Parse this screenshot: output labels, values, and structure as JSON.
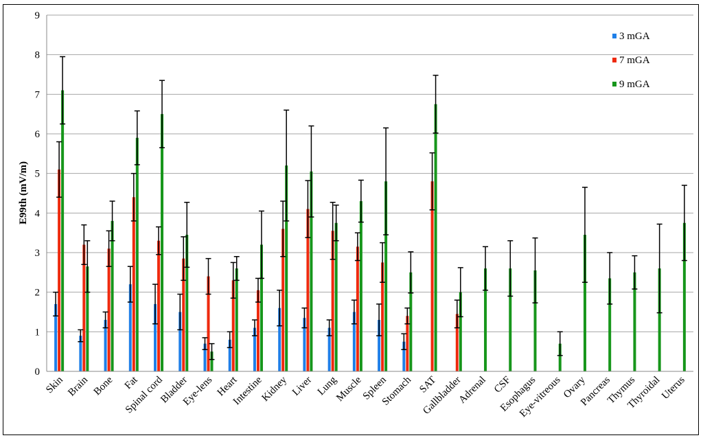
{
  "chart_data": {
    "type": "bar",
    "title": "",
    "xlabel": "",
    "ylabel": "E99th (mV/m)",
    "ylim": [
      0,
      9
    ],
    "yticks": [
      0,
      1,
      2,
      3,
      4,
      5,
      6,
      7,
      8,
      9
    ],
    "grid": true,
    "legend_position": "top-right",
    "categories": [
      "Skin",
      "Brain",
      "Bone",
      "Fat",
      "Spinal cord",
      "Bladder",
      "Eye-lens",
      "Heart",
      "Intestine",
      "Kidney",
      "Liver",
      "Lung",
      "Muscle",
      "Spleen",
      "Stomach",
      "SAT",
      "Gallbladder",
      "Adrenal",
      "CSF",
      "Esophagus",
      "Eye-vitreous",
      "Ovary",
      "Pancreas",
      "Thymus",
      "Thyroidal",
      "Uterus"
    ],
    "series": [
      {
        "name": "3 mGA",
        "color": "#1f7fe8",
        "values": [
          1.7,
          0.9,
          1.3,
          2.2,
          1.7,
          1.5,
          0.7,
          0.8,
          1.1,
          1.6,
          1.35,
          1.1,
          1.5,
          1.3,
          0.75,
          null,
          null,
          null,
          null,
          null,
          null,
          null,
          null,
          null,
          null,
          null
        ],
        "errors": [
          0.3,
          0.15,
          0.2,
          0.45,
          0.5,
          0.45,
          0.15,
          0.2,
          0.2,
          0.45,
          0.25,
          0.2,
          0.3,
          0.4,
          0.2,
          null,
          null,
          null,
          null,
          null,
          null,
          null,
          null,
          null,
          null,
          null
        ]
      },
      {
        "name": "7 mGA",
        "color": "#ee2a0e",
        "values": [
          5.1,
          3.2,
          3.1,
          4.4,
          3.3,
          2.85,
          2.4,
          2.3,
          2.05,
          3.6,
          4.1,
          3.55,
          3.15,
          2.75,
          1.4,
          4.8,
          1.45,
          null,
          null,
          null,
          null,
          null,
          null,
          null,
          null,
          null
        ],
        "errors": [
          0.7,
          0.5,
          0.45,
          0.6,
          0.35,
          0.55,
          0.45,
          0.45,
          0.3,
          0.7,
          0.72,
          0.72,
          0.35,
          0.5,
          0.2,
          0.72,
          0.35,
          null,
          null,
          null,
          null,
          null,
          null,
          null,
          null,
          null
        ]
      },
      {
        "name": "9 mGA",
        "color": "#17961b",
        "values": [
          7.1,
          2.65,
          3.8,
          5.9,
          6.5,
          3.45,
          0.5,
          2.6,
          3.2,
          5.2,
          5.05,
          3.75,
          4.3,
          4.8,
          2.5,
          6.75,
          2.0,
          2.6,
          2.6,
          2.55,
          0.7,
          3.45,
          2.35,
          2.5,
          2.6,
          3.75
        ],
        "errors": [
          0.85,
          0.65,
          0.5,
          0.68,
          0.85,
          0.82,
          0.2,
          0.3,
          0.85,
          1.4,
          1.15,
          0.45,
          0.53,
          1.35,
          0.52,
          0.73,
          0.62,
          0.55,
          0.7,
          0.82,
          0.3,
          1.2,
          0.65,
          0.42,
          1.12,
          0.95
        ]
      }
    ]
  }
}
